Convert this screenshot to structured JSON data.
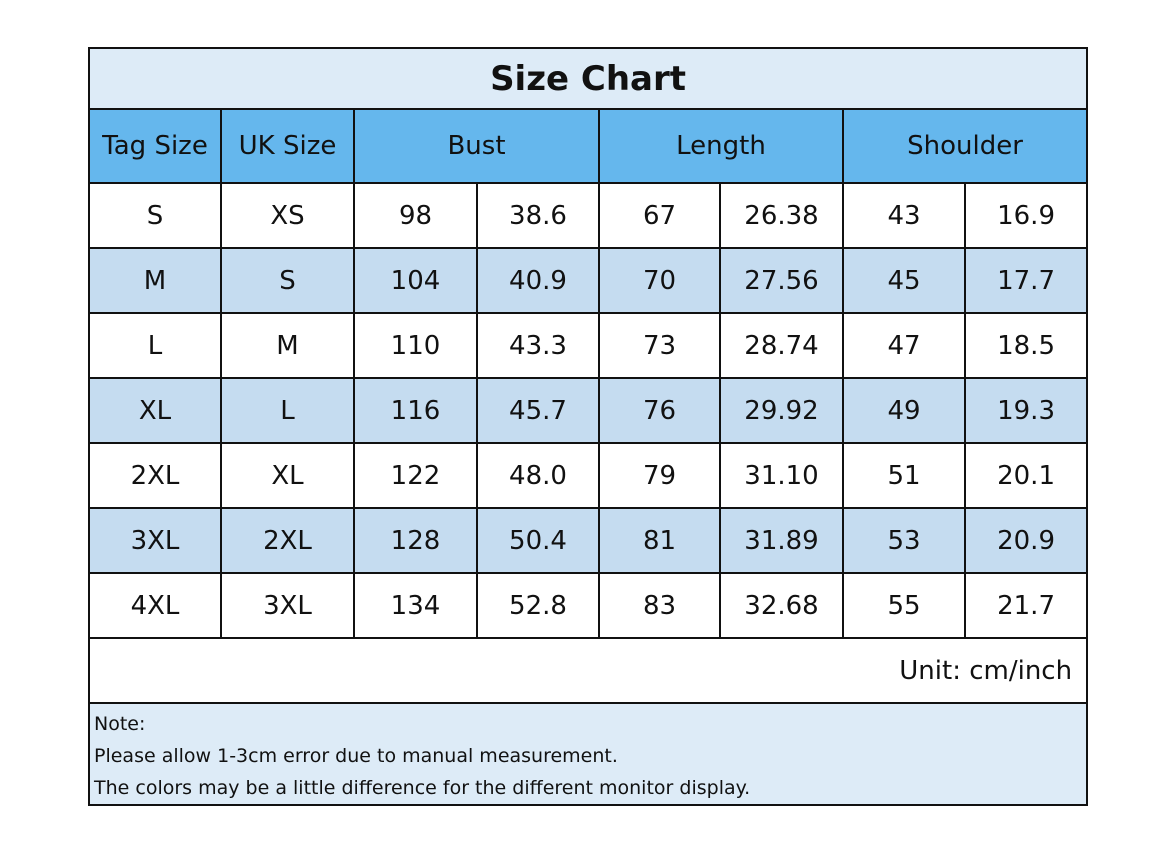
{
  "title": "Size Chart",
  "headers": [
    "Tag Size",
    "UK Size",
    "Bust",
    "Length",
    "Shoulder"
  ],
  "rows": [
    [
      "S",
      "XS",
      "98",
      "38.6",
      "67",
      "26.38",
      "43",
      "16.9"
    ],
    [
      "M",
      "S",
      "104",
      "40.9",
      "70",
      "27.56",
      "45",
      "17.7"
    ],
    [
      "L",
      "M",
      "110",
      "43.3",
      "73",
      "28.74",
      "47",
      "18.5"
    ],
    [
      "XL",
      "L",
      "116",
      "45.7",
      "76",
      "29.92",
      "49",
      "19.3"
    ],
    [
      "2XL",
      "XL",
      "122",
      "48.0",
      "79",
      "31.10",
      "51",
      "20.1"
    ],
    [
      "3XL",
      "2XL",
      "128",
      "50.4",
      "81",
      "31.89",
      "53",
      "20.9"
    ],
    [
      "4XL",
      "3XL",
      "134",
      "52.8",
      "83",
      "32.68",
      "55",
      "21.7"
    ]
  ],
  "unit": "Unit: cm/inch",
  "note": {
    "label": "Note:",
    "lines": [
      "Please allow 1-3cm error due to manual measurement.",
      "The colors may be a little difference for the different monitor display."
    ]
  },
  "colors": {
    "title_bg": "#ddebf7",
    "header_bg": "#65b7ed",
    "alt_row_bg": "#c5dcf0"
  }
}
